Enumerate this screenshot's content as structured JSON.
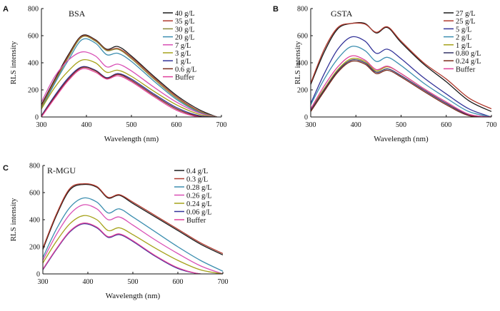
{
  "chart_data": [
    {
      "type": "line",
      "panel": "A",
      "title": "BSA",
      "xlabel": "Wavelength (nm)",
      "ylabel": "RLS intensity",
      "xlim": [
        300,
        700
      ],
      "ylim": [
        0,
        800
      ],
      "xticks": [
        300,
        400,
        500,
        600,
        700
      ],
      "yticks": [
        0,
        200,
        400,
        600,
        800
      ],
      "grid": false,
      "legend_position": "top-right",
      "series": [
        {
          "name": "40 g/L",
          "color": "#1a1a1a",
          "x": [
            300,
            330,
            360,
            390,
            420,
            445,
            470,
            500,
            550,
            600,
            650,
            690
          ],
          "y": [
            90,
            280,
            460,
            600,
            570,
            500,
            520,
            450,
            300,
            160,
            55,
            0
          ]
        },
        {
          "name": "35 g/L",
          "color": "#b03a2e",
          "x": [
            300,
            330,
            360,
            390,
            420,
            445,
            470,
            500,
            550,
            600,
            650,
            690
          ],
          "y": [
            80,
            270,
            450,
            595,
            565,
            495,
            505,
            440,
            290,
            150,
            45,
            0
          ]
        },
        {
          "name": "30 g/L",
          "color": "#8a8a3a",
          "x": [
            300,
            330,
            360,
            390,
            420,
            445,
            470,
            500,
            550,
            600,
            650,
            690
          ],
          "y": [
            70,
            260,
            440,
            590,
            560,
            490,
            500,
            430,
            280,
            140,
            40,
            0
          ]
        },
        {
          "name": "20 g/L",
          "color": "#3d8fb0",
          "x": [
            300,
            330,
            360,
            390,
            420,
            445,
            470,
            500,
            550,
            600,
            650,
            690
          ],
          "y": [
            60,
            250,
            420,
            570,
            545,
            460,
            470,
            410,
            265,
            130,
            35,
            0
          ]
        },
        {
          "name": "7 g/L",
          "color": "#d94fb5",
          "x": [
            300,
            330,
            360,
            390,
            420,
            445,
            470,
            500,
            550,
            600,
            650,
            690
          ],
          "y": [
            110,
            300,
            420,
            480,
            450,
            370,
            390,
            340,
            220,
            110,
            30,
            0
          ]
        },
        {
          "name": "3 g/L",
          "color": "#a6a21a",
          "x": [
            300,
            330,
            360,
            390,
            420,
            445,
            470,
            500,
            550,
            600,
            650,
            690
          ],
          "y": [
            60,
            220,
            340,
            420,
            400,
            330,
            345,
            300,
            190,
            90,
            20,
            0
          ]
        },
        {
          "name": "1 g/L",
          "color": "#333399",
          "x": [
            300,
            330,
            360,
            390,
            420,
            445,
            470,
            500,
            550,
            600,
            650,
            690
          ],
          "y": [
            10,
            160,
            290,
            370,
            345,
            290,
            320,
            280,
            170,
            70,
            10,
            0
          ]
        },
        {
          "name": "0.6 g/L",
          "color": "#7a2a1a",
          "x": [
            300,
            330,
            360,
            390,
            420,
            445,
            470,
            500,
            550,
            600,
            650,
            690
          ],
          "y": [
            5,
            150,
            280,
            365,
            340,
            285,
            315,
            270,
            160,
            60,
            5,
            0
          ]
        },
        {
          "name": "Buffer",
          "color": "#e0409a",
          "x": [
            300,
            330,
            360,
            390,
            420,
            445,
            470,
            500,
            550,
            600,
            650,
            690
          ],
          "y": [
            0,
            140,
            270,
            355,
            330,
            280,
            305,
            260,
            150,
            50,
            0,
            0
          ]
        }
      ]
    },
    {
      "type": "line",
      "panel": "B",
      "title": "GSTA",
      "xlabel": "Wavelength (nm)",
      "ylabel": "RLS intensity",
      "xlim": [
        300,
        700
      ],
      "ylim": [
        0,
        800
      ],
      "xticks": [
        300,
        400,
        500,
        600,
        700
      ],
      "yticks": [
        0,
        200,
        400,
        600,
        800
      ],
      "grid": false,
      "legend_position": "top-right",
      "series": [
        {
          "name": "27 g/L",
          "color": "#1a1a1a",
          "x": [
            300,
            330,
            360,
            390,
            420,
            445,
            470,
            500,
            550,
            600,
            650,
            700
          ],
          "y": [
            240,
            480,
            650,
            690,
            690,
            620,
            660,
            550,
            390,
            260,
            120,
            40
          ]
        },
        {
          "name": "25 g/L",
          "color": "#b03a2e",
          "x": [
            300,
            330,
            360,
            390,
            420,
            445,
            470,
            500,
            550,
            600,
            650,
            700
          ],
          "y": [
            250,
            500,
            660,
            690,
            685,
            625,
            665,
            560,
            400,
            280,
            140,
            60
          ]
        },
        {
          "name": "5 g/L",
          "color": "#333399",
          "x": [
            300,
            330,
            360,
            390,
            420,
            445,
            470,
            500,
            550,
            600,
            650,
            700
          ],
          "y": [
            100,
            320,
            500,
            590,
            560,
            470,
            500,
            430,
            290,
            170,
            60,
            0
          ]
        },
        {
          "name": "2 g/L",
          "color": "#3d8fb0",
          "x": [
            300,
            330,
            360,
            390,
            420,
            445,
            470,
            500,
            550,
            600,
            650,
            700
          ],
          "y": [
            90,
            280,
            430,
            520,
            490,
            410,
            440,
            380,
            250,
            140,
            40,
            0
          ]
        },
        {
          "name": "1 g/L",
          "color": "#a6a21a",
          "x": [
            300,
            330,
            360,
            390,
            420,
            445,
            470,
            500,
            550,
            600,
            650,
            700
          ],
          "y": [
            60,
            210,
            350,
            430,
            410,
            340,
            370,
            320,
            210,
            110,
            20,
            0
          ]
        },
        {
          "name": "0.80 g/L",
          "color": "#333366",
          "x": [
            300,
            330,
            360,
            390,
            420,
            445,
            470,
            500,
            550,
            600,
            650,
            700
          ],
          "y": [
            50,
            200,
            340,
            420,
            400,
            330,
            355,
            305,
            200,
            100,
            15,
            0
          ]
        },
        {
          "name": "0.24 g/L",
          "color": "#7a2a1a",
          "x": [
            300,
            330,
            360,
            390,
            420,
            445,
            470,
            500,
            550,
            600,
            650,
            700
          ],
          "y": [
            40,
            190,
            330,
            410,
            390,
            320,
            345,
            295,
            190,
            90,
            10,
            0
          ]
        },
        {
          "name": "Buffer",
          "color": "#e0409a",
          "x": [
            300,
            330,
            360,
            390,
            420,
            445,
            470,
            500,
            550,
            600,
            650,
            700
          ],
          "y": [
            60,
            230,
            370,
            450,
            420,
            350,
            375,
            320,
            210,
            110,
            20,
            0
          ]
        }
      ]
    },
    {
      "type": "line",
      "panel": "C",
      "title": "R-MGU",
      "xlabel": "Wavelength (nm)",
      "ylabel": "RLS intensity",
      "xlim": [
        300,
        700
      ],
      "ylim": [
        0,
        800
      ],
      "xticks": [
        300,
        400,
        500,
        600,
        700
      ],
      "yticks": [
        0,
        200,
        400,
        600,
        800
      ],
      "grid": false,
      "legend_position": "top-right",
      "series": [
        {
          "name": "0.4 g/L",
          "color": "#1a1a1a",
          "x": [
            300,
            330,
            360,
            390,
            420,
            445,
            470,
            500,
            550,
            600,
            650,
            700
          ],
          "y": [
            180,
            430,
            620,
            660,
            640,
            560,
            580,
            520,
            420,
            320,
            220,
            140
          ]
        },
        {
          "name": "0.3 g/L",
          "color": "#b03a2e",
          "x": [
            300,
            330,
            360,
            390,
            420,
            445,
            470,
            500,
            550,
            600,
            650,
            700
          ],
          "y": [
            190,
            440,
            630,
            665,
            645,
            565,
            585,
            530,
            430,
            330,
            230,
            150
          ]
        },
        {
          "name": "0.28 g/L",
          "color": "#3d8fb0",
          "x": [
            300,
            330,
            360,
            390,
            420,
            445,
            470,
            500,
            550,
            600,
            650,
            700
          ],
          "y": [
            120,
            330,
            490,
            560,
            530,
            450,
            480,
            420,
            310,
            200,
            100,
            20
          ]
        },
        {
          "name": "0.26 g/L",
          "color": "#d94fb5",
          "x": [
            300,
            330,
            360,
            390,
            420,
            445,
            470,
            500,
            550,
            600,
            650,
            700
          ],
          "y": [
            100,
            290,
            440,
            510,
            480,
            400,
            420,
            360,
            250,
            150,
            60,
            0
          ]
        },
        {
          "name": "0.24 g/L",
          "color": "#a6a21a",
          "x": [
            300,
            330,
            360,
            390,
            420,
            445,
            470,
            500,
            550,
            600,
            650,
            700
          ],
          "y": [
            80,
            240,
            370,
            430,
            400,
            320,
            340,
            290,
            190,
            100,
            30,
            0
          ]
        },
        {
          "name": "0.06 g/L",
          "color": "#333399",
          "x": [
            300,
            330,
            360,
            390,
            420,
            445,
            470,
            500,
            550,
            600,
            650,
            700
          ],
          "y": [
            30,
            180,
            310,
            370,
            340,
            270,
            290,
            240,
            130,
            40,
            0,
            0
          ]
        },
        {
          "name": "Buffer",
          "color": "#e0409a",
          "x": [
            300,
            330,
            360,
            390,
            420,
            445,
            470,
            500,
            550,
            600,
            650,
            700
          ],
          "y": [
            35,
            185,
            315,
            375,
            345,
            275,
            295,
            245,
            135,
            45,
            0,
            0
          ]
        }
      ]
    }
  ]
}
